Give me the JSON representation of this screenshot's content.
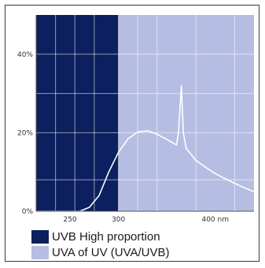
{
  "chart_data": {
    "type": "area",
    "title": "",
    "xlabel": "",
    "ylabel": "",
    "xlim": [
      215,
      440
    ],
    "ylim": [
      0,
      50
    ],
    "x_ticks": [
      {
        "value": 250,
        "label": "250"
      },
      {
        "value": 300,
        "label": "300"
      },
      {
        "value": 400,
        "label": "400 nm"
      }
    ],
    "y_ticks": [
      {
        "value": 0,
        "label": "0%"
      },
      {
        "value": 20,
        "label": "20%"
      },
      {
        "value": 40,
        "label": "40%"
      }
    ],
    "grid": true,
    "regions": [
      {
        "name": "UVB High proportion",
        "from": 215,
        "to": 300,
        "color": "#0c1f5e"
      },
      {
        "name": "UVA of UV (UVA/UVB)",
        "from": 300,
        "to": 440,
        "color": "#b6bde2"
      }
    ],
    "series": [
      {
        "color": "#ffffff",
        "x": [
          215,
          250,
          260,
          270,
          280,
          290,
          300,
          310,
          320,
          330,
          340,
          350,
          360,
          362,
          365,
          367,
          370,
          380,
          390,
          400,
          410,
          420,
          430,
          440
        ],
        "y": [
          0,
          0,
          0,
          1,
          4,
          10,
          15,
          18.5,
          20.2,
          20.5,
          19.6,
          18.3,
          16.9,
          20,
          32,
          20,
          16,
          13,
          11.2,
          9.6,
          8.3,
          7.1,
          6.0,
          5.0
        ]
      }
    ],
    "legend_position": "bottom-left"
  },
  "legend": [
    {
      "label": "UVB High proportion",
      "color": "#0c1f5e"
    },
    {
      "label": "UVA of UV (UVA/UVB)",
      "color": "#b6bde2"
    }
  ]
}
